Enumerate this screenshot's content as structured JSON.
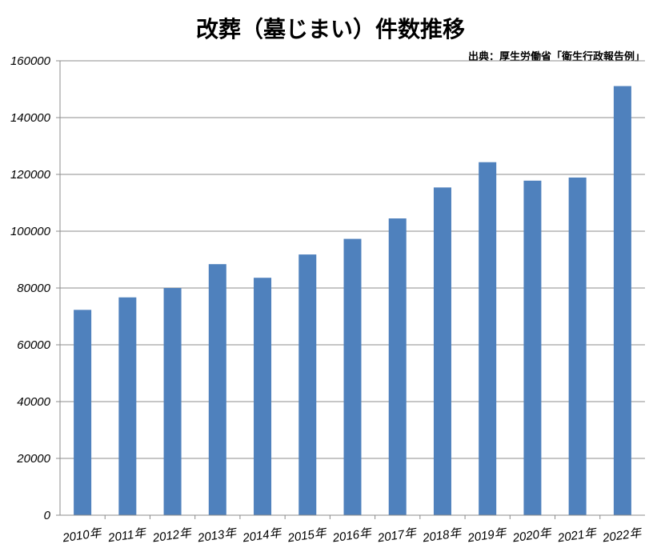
{
  "chart_data": {
    "type": "bar",
    "title": "改葬（墓じまい）件数推移",
    "source": "出典：厚生労働省「衛生行政報告例」",
    "xlabel": "",
    "ylabel": "",
    "categories": [
      "2010年",
      "2011年",
      "2012年",
      "2013年",
      "2014年",
      "2015年",
      "2016年",
      "2017年",
      "2018年",
      "2019年",
      "2020年",
      "2021年",
      "2022年"
    ],
    "values": [
      72300,
      76700,
      80000,
      88400,
      83600,
      91800,
      97300,
      104500,
      115400,
      124300,
      117800,
      118900,
      151100
    ],
    "ylim": [
      0,
      160000
    ],
    "yticks": [
      "0",
      "20000",
      "40000",
      "60000",
      "80000",
      "100000",
      "120000",
      "140000",
      "160000"
    ],
    "grid": true,
    "bar_color": "#4f81bd",
    "gridline_color": "#8c8c8c"
  }
}
